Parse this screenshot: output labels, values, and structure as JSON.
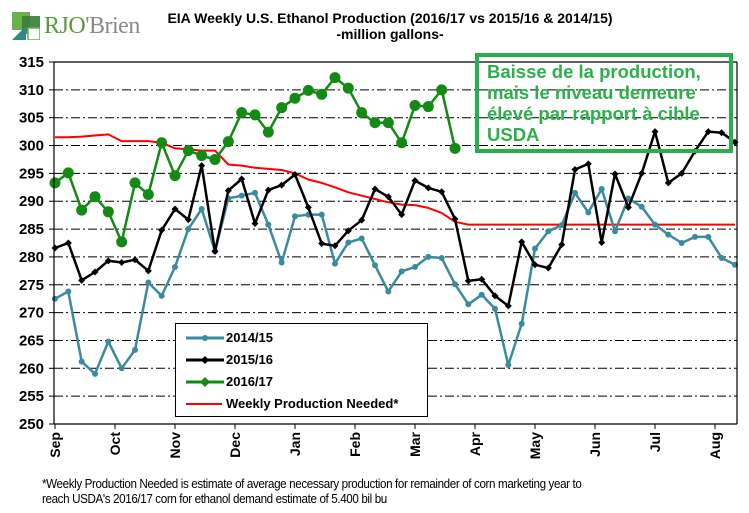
{
  "brand": {
    "name_colored": "RJO",
    "name_gray": "'Brien",
    "logo": "rjobrien-logo-icon"
  },
  "callout": {
    "lines": [
      "Baisse de la production,",
      "mais le niveau demeure",
      "élevé par rapport à cible",
      "USDA"
    ],
    "color": "#2db04a"
  },
  "footnote": {
    "line1": "*Weekly Production Needed is estimate of average necessary production for remainder of corn marketing year to",
    "line2": "reach USDA's 2016/17 corn for ethanol demand estimate of 5.400 bil bu"
  },
  "chart_data": {
    "type": "line",
    "title": "EIA Weekly U.S. Ethanol Production (2016/17 vs 2015/16 & 2014/15)",
    "subtitle": "-million  gallons-",
    "xlabel": "",
    "ylabel": "",
    "ylim": [
      250,
      315
    ],
    "yticks": [
      250,
      255,
      260,
      265,
      270,
      275,
      280,
      285,
      290,
      295,
      300,
      305,
      310,
      315
    ],
    "x_unit": "week of marketing year (Sep–Aug)",
    "x_count": 52,
    "month_labels": [
      "Sep",
      "Oct",
      "Nov",
      "Dec",
      "Jan",
      "Feb",
      "Mar",
      "Apr",
      "May",
      "Jun",
      "Jul",
      "Aug"
    ],
    "month_start_weeks": [
      0,
      4.5,
      9,
      13.5,
      18,
      22.5,
      27,
      31.5,
      36,
      40.5,
      45,
      49.5
    ],
    "grid": "horizontal dash-dot",
    "legend": {
      "placement": "bottom-left-center"
    },
    "series": [
      {
        "name": "2014/15",
        "color": "#3a8aa0",
        "marker": "circle-small",
        "values": [
          272.5,
          273.8,
          261.2,
          259.0,
          264.8,
          260.0,
          263.3,
          275.4,
          273.0,
          278.2,
          285.0,
          288.6,
          281.0,
          290.5,
          291.0,
          291.5,
          285.8,
          279.0,
          287.3,
          287.6,
          287.6,
          278.8,
          282.6,
          283.3,
          278.5,
          273.8,
          277.4,
          278.2,
          280.0,
          279.8,
          275.1,
          271.5,
          273.2,
          270.7,
          260.6,
          268.0,
          281.5,
          284.6,
          285.7,
          291.5,
          288.0,
          292.2,
          284.6,
          290.5,
          289.0,
          285.8,
          284.0,
          282.5,
          283.6,
          283.6,
          279.8,
          278.6
        ]
      },
      {
        "name": "2015/16",
        "color": "#000000",
        "marker": "diamond-small",
        "values": [
          281.6,
          282.5,
          275.8,
          277.3,
          279.3,
          279.0,
          279.5,
          277.5,
          284.8,
          288.6,
          286.7,
          296.4,
          281.0,
          291.9,
          294.0,
          286.0,
          292.0,
          292.9,
          294.8,
          288.9,
          282.4,
          282.0,
          284.7,
          286.6,
          292.2,
          290.8,
          287.6,
          293.7,
          292.4,
          291.7,
          286.8,
          275.7,
          276.0,
          273.0,
          271.2,
          282.7,
          278.6,
          278.0,
          282.2,
          295.7,
          296.7,
          282.6,
          294.9,
          288.9,
          295.0,
          302.5,
          293.3,
          295.0,
          299.0,
          302.5,
          302.3,
          300.6
        ]
      },
      {
        "name": "2016/17",
        "color": "#138a13",
        "marker": "circle-large",
        "values": [
          293.3,
          295.1,
          288.4,
          290.8,
          288.1,
          282.7,
          293.3,
          291.2,
          300.5,
          294.6,
          299.1,
          298.2,
          297.5,
          300.7,
          305.9,
          305.5,
          302.4,
          306.8,
          308.5,
          309.9,
          309.2,
          312.2,
          310.3,
          305.9,
          304.1,
          304.1,
          300.5,
          307.2,
          307.0,
          310.0,
          299.5
        ]
      },
      {
        "name": "Weekly Production Needed*",
        "color": "#ff0000",
        "marker": "none",
        "values": [
          301.5,
          301.5,
          301.6,
          301.8,
          302.0,
          300.8,
          300.8,
          300.8,
          300.5,
          299.5,
          299.3,
          299.1,
          299.1,
          296.6,
          296.4,
          296.0,
          295.8,
          295.6,
          295.0,
          293.9,
          293.3,
          292.5,
          291.6,
          291.0,
          290.4,
          289.8,
          289.4,
          289.3,
          288.8,
          287.9,
          286.3,
          285.8,
          285.8,
          285.8,
          285.8,
          285.8,
          285.8,
          285.8,
          285.8,
          285.8,
          285.8,
          285.8,
          285.8,
          285.8,
          285.8,
          285.8,
          285.8,
          285.8,
          285.8,
          285.8,
          285.8,
          285.8
        ]
      }
    ]
  }
}
